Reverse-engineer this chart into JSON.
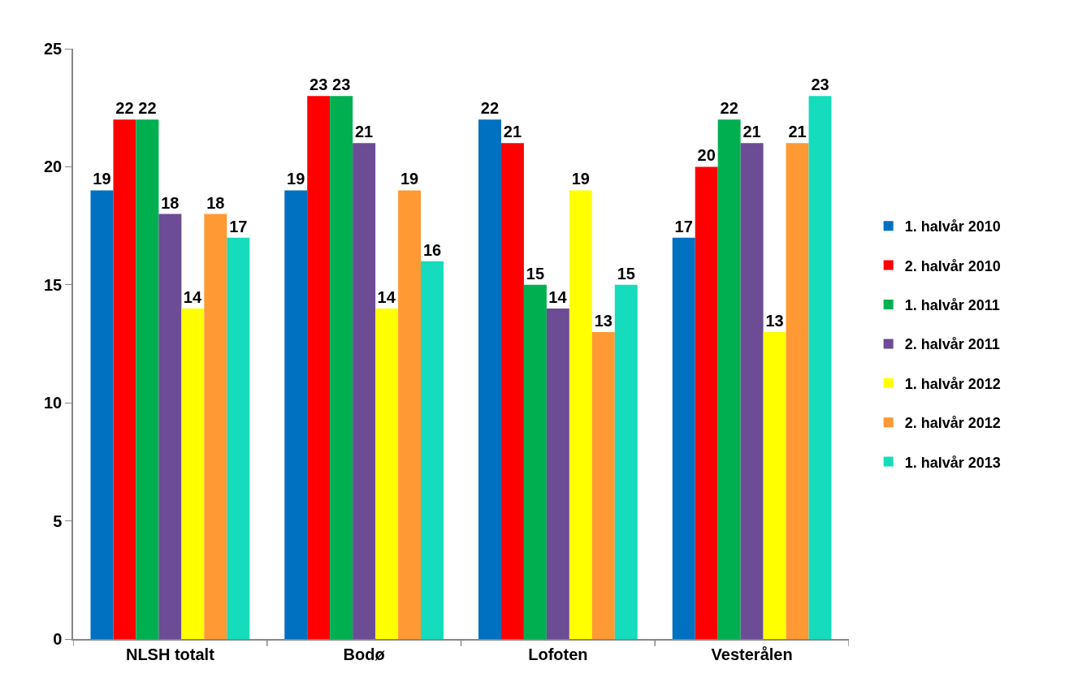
{
  "chart_data": {
    "type": "bar",
    "categories": [
      "NLSH totalt",
      "Bodø",
      "Lofoten",
      "Vesterålen"
    ],
    "series": [
      {
        "name": "1. halvår 2010",
        "color": "#0070c0",
        "values": [
          19,
          19,
          22,
          17
        ]
      },
      {
        "name": "2. halvår 2010",
        "color": "#ff0000",
        "values": [
          22,
          23,
          21,
          20
        ]
      },
      {
        "name": "1. halvår 2011",
        "color": "#00b050",
        "values": [
          22,
          23,
          15,
          22
        ]
      },
      {
        "name": "2. halvår 2011",
        "color": "#6b4c95",
        "values": [
          18,
          21,
          14,
          21
        ]
      },
      {
        "name": "1. halvår 2012",
        "color": "#ffff00",
        "values": [
          14,
          14,
          19,
          13
        ]
      },
      {
        "name": "2. halvår 2012",
        "color": "#ff9933",
        "values": [
          18,
          19,
          13,
          21
        ]
      },
      {
        "name": "1. halvår 2013",
        "color": "#14dcbc",
        "values": [
          17,
          16,
          15,
          23
        ]
      }
    ],
    "ylim": [
      0,
      25
    ],
    "yticks": [
      0,
      5,
      10,
      15,
      20,
      25
    ],
    "data_labels": true,
    "grid": false,
    "legend": "right"
  }
}
